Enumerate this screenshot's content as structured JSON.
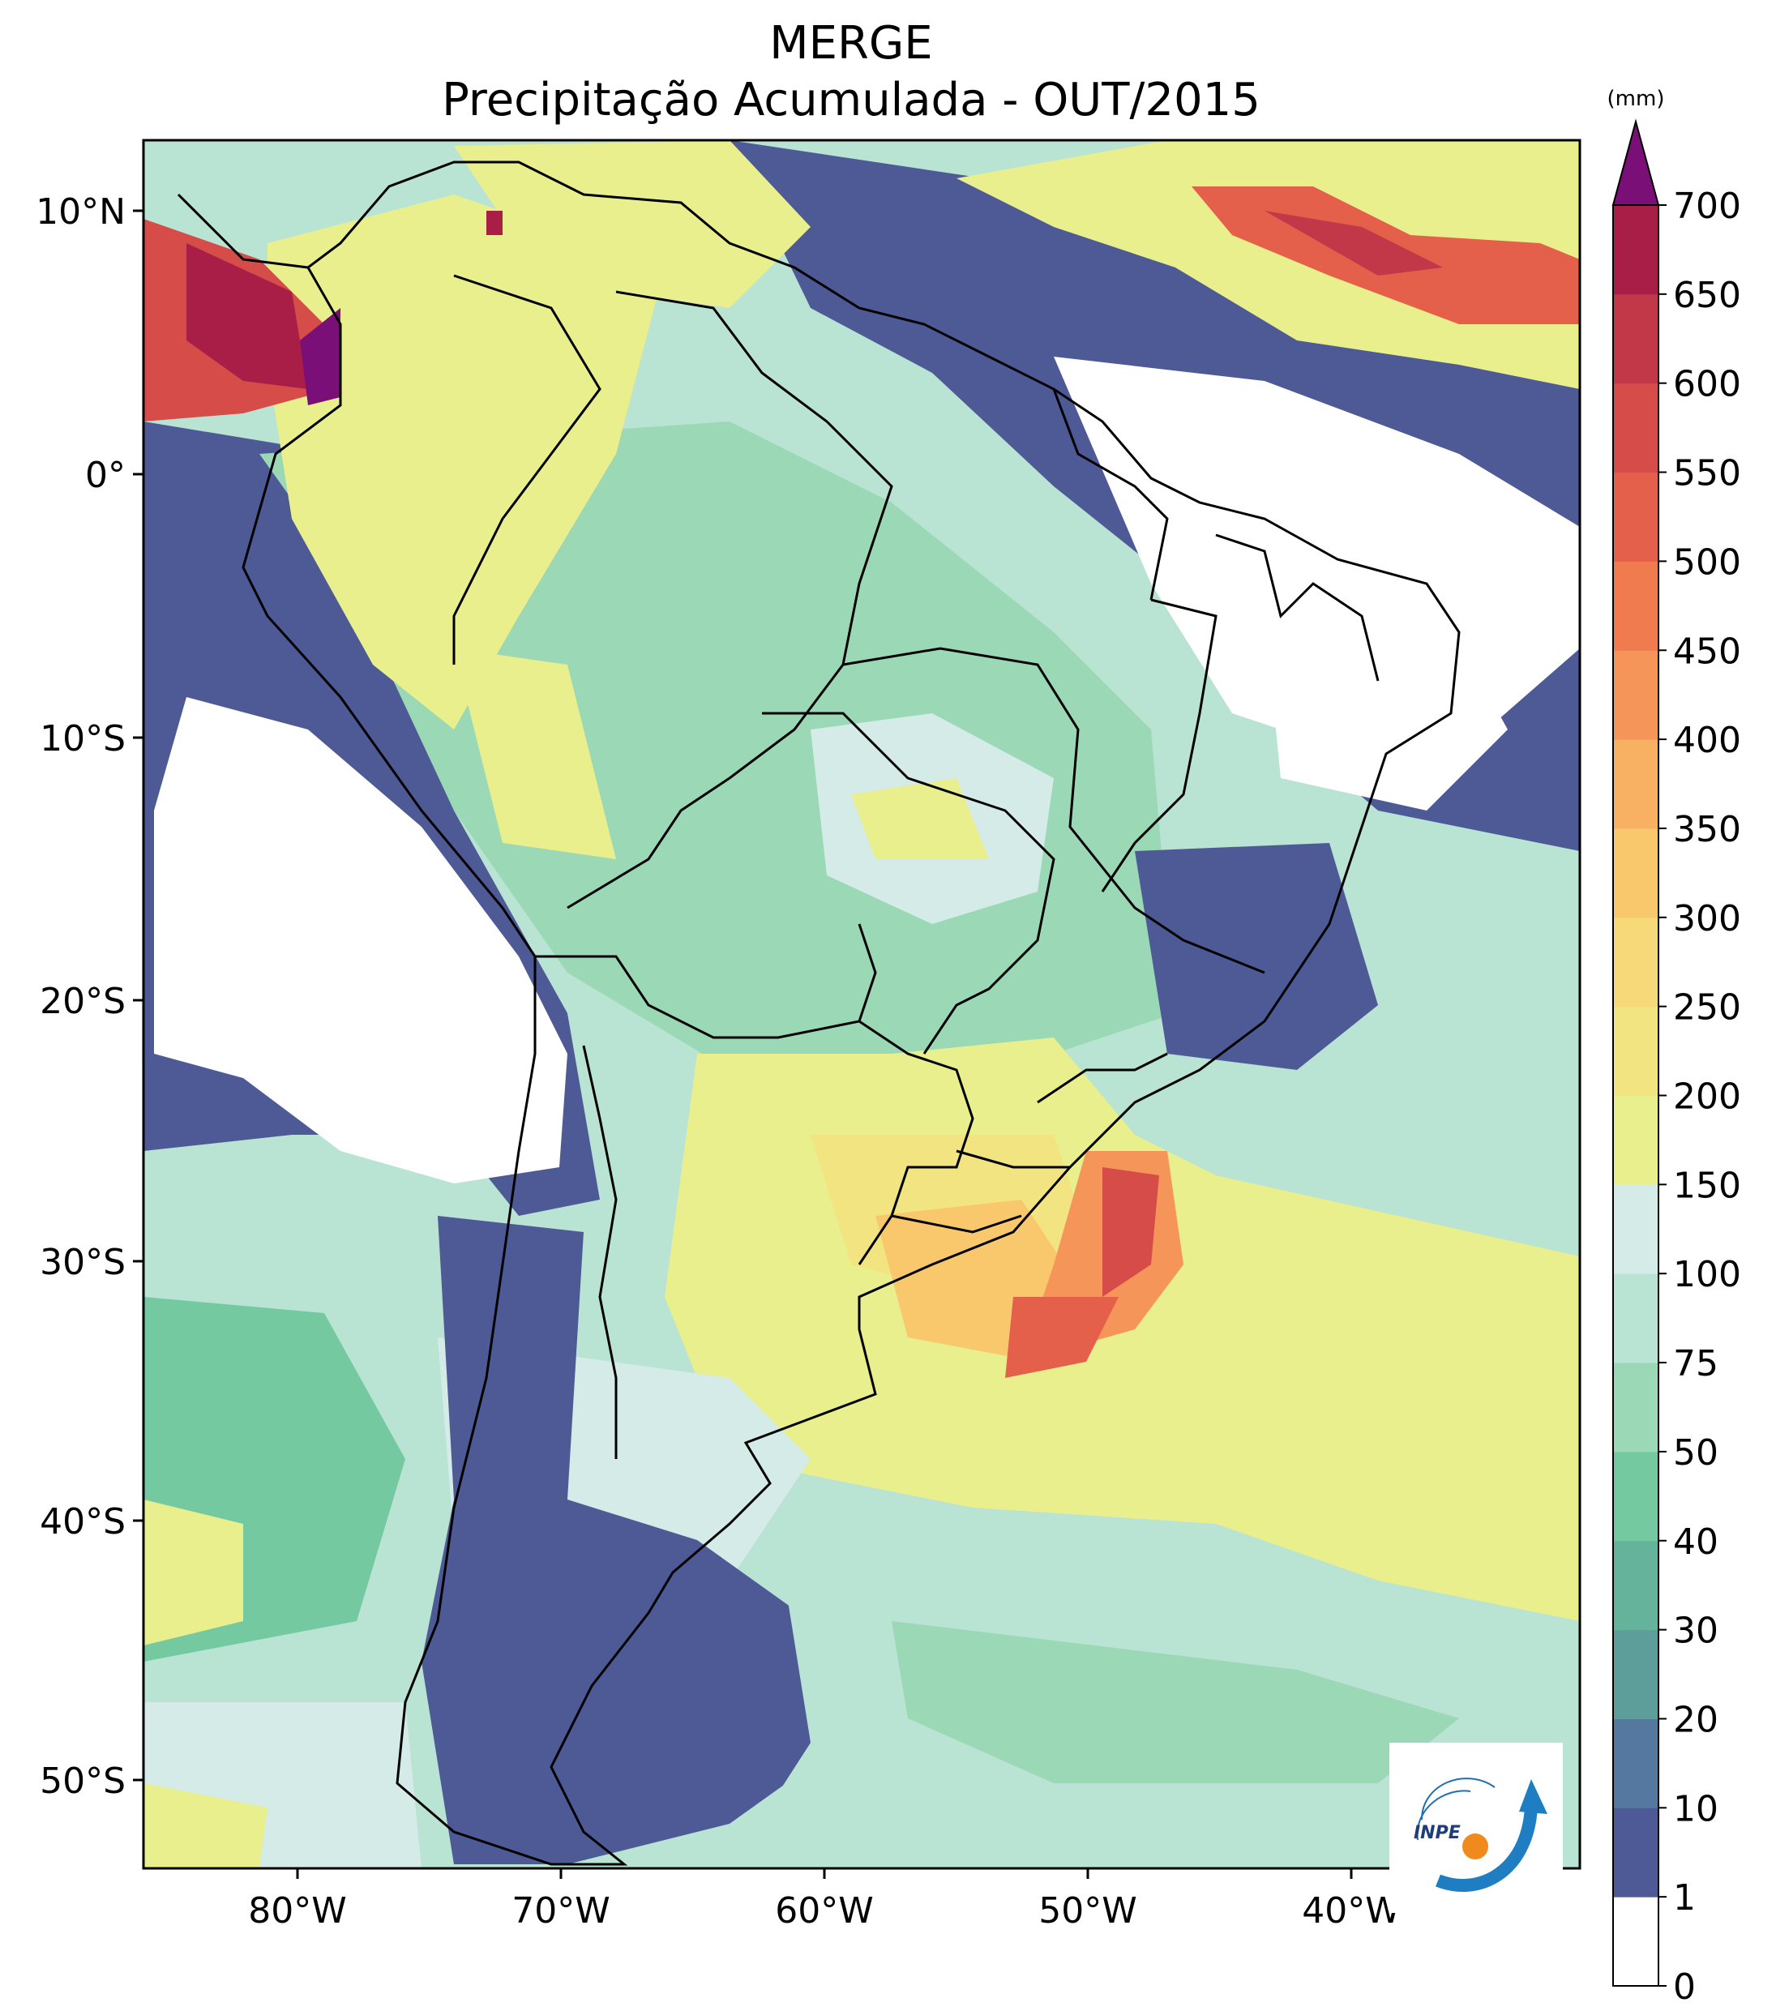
{
  "title": {
    "line1": "MERGE",
    "line2": "Precipitação Acumulada - OUT/2015"
  },
  "map": {
    "region": "South America",
    "longitude_ticks": [
      "80°W",
      "70°W",
      "60°W",
      "50°W",
      "40°W"
    ],
    "latitude_ticks": [
      "10°N",
      "0°",
      "10°S",
      "20°S",
      "30°S",
      "40°S",
      "50°S"
    ],
    "boundaries": "country and Brazilian state borders"
  },
  "colorbar": {
    "unit": "(mm)",
    "levels": [
      "0",
      "1",
      "10",
      "20",
      "30",
      "40",
      "50",
      "75",
      "100",
      "150",
      "200",
      "250",
      "300",
      "350",
      "400",
      "450",
      "500",
      "550",
      "600",
      "650",
      "700"
    ],
    "colors": [
      "#ffffff",
      "#4d5a96",
      "#5478a0",
      "#5e9e9a",
      "#65b39a",
      "#74c9a1",
      "#9ad8b6",
      "#b9e3d3",
      "#d4ebe7",
      "#e8ef8c",
      "#f2e581",
      "#f7d979",
      "#f9c86c",
      "#f8b063",
      "#f5955a",
      "#ef7b4f",
      "#e4604a",
      "#d54c48",
      "#c33848",
      "#a91e47"
    ],
    "extend_color": "#7b0f78"
  },
  "logo": {
    "text": "INPE"
  }
}
